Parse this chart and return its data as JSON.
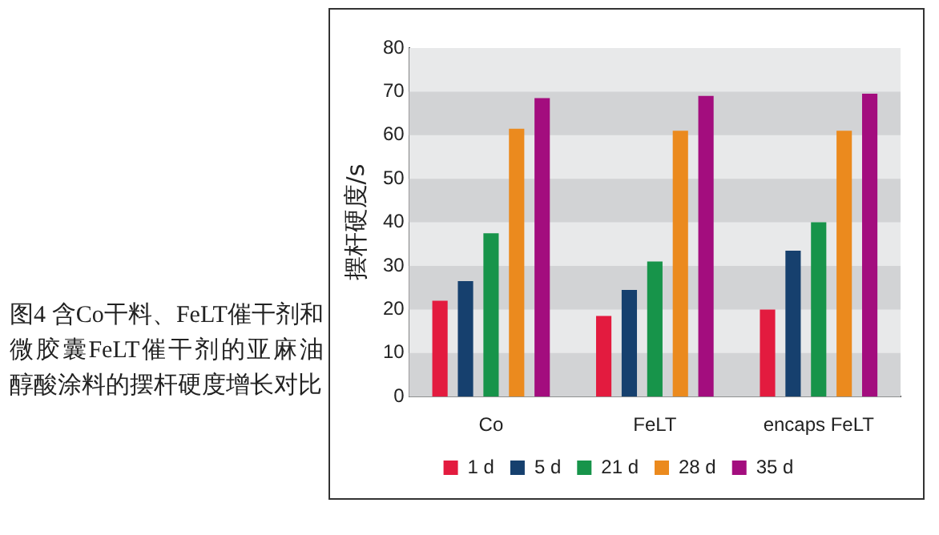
{
  "chart_data": {
    "type": "bar",
    "title": "图4 含Co干料、FeLT催干剂和微胶囊FeLT催干剂的亚麻油醇酸涂料的摆杆硬度增长对比",
    "ylabel": "摆杆硬度/s",
    "categories": [
      "Co",
      "FeLT",
      "encaps FeLT"
    ],
    "series": [
      {
        "name": "1 d",
        "color": "#e31b3f",
        "values": [
          22,
          18.5,
          20
        ]
      },
      {
        "name": "5 d",
        "color": "#16406e",
        "values": [
          26.5,
          24.5,
          33.5
        ]
      },
      {
        "name": "21 d",
        "color": "#17944a",
        "values": [
          37.5,
          31,
          40
        ]
      },
      {
        "name": "28 d",
        "color": "#eb8a1e",
        "values": [
          61.5,
          61,
          61
        ]
      },
      {
        "name": "35 d",
        "color": "#a30d7e",
        "values": [
          68.5,
          69,
          69.5
        ]
      }
    ],
    "ylim": [
      0,
      80
    ],
    "yticks": [
      0,
      10,
      20,
      30,
      40,
      50,
      60,
      70,
      80
    ],
    "bands": [
      {
        "axis": "y",
        "from": 0,
        "to": 10,
        "color": "#d2d3d5"
      },
      {
        "axis": "y",
        "from": 20,
        "to": 30,
        "color": "#d2d3d5"
      },
      {
        "axis": "y",
        "from": 40,
        "to": 50,
        "color": "#d2d3d5"
      },
      {
        "axis": "y",
        "from": 60,
        "to": 70,
        "color": "#d2d3d5"
      }
    ],
    "legend": "bottom"
  }
}
